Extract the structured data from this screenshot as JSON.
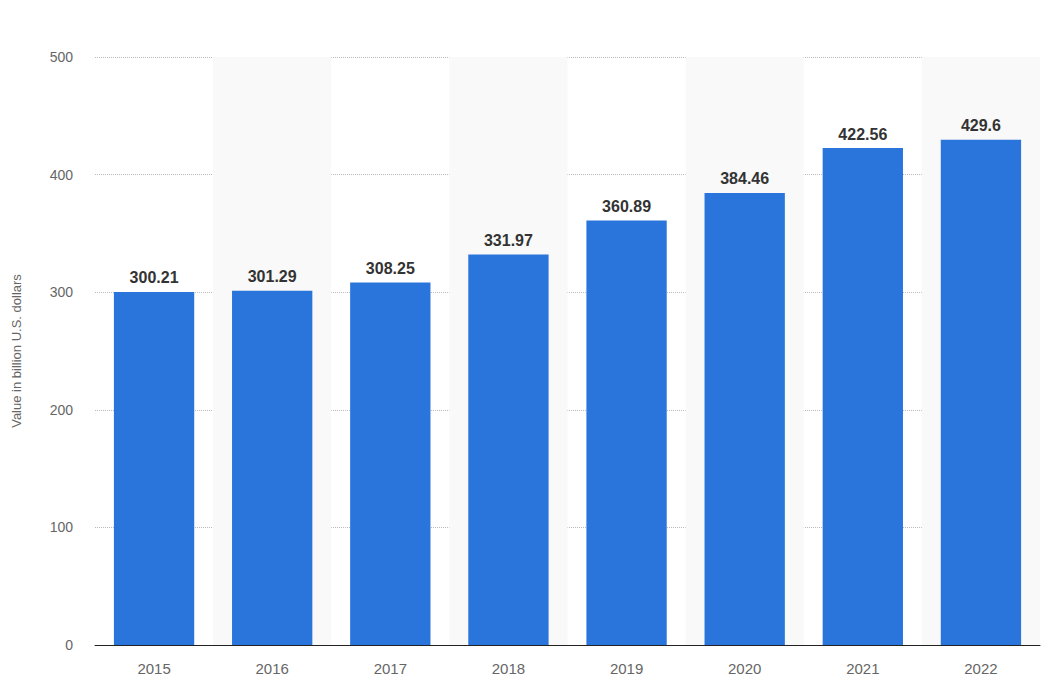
{
  "chart_data": {
    "type": "bar",
    "y_label": "Value in billion U.S. dollars",
    "categories": [
      "2015",
      "2016",
      "2017",
      "2018",
      "2019",
      "2020",
      "2021",
      "2022"
    ],
    "values": [
      300.21,
      301.29,
      308.25,
      331.97,
      360.89,
      384.46,
      422.56,
      429.6
    ],
    "color": "#2a75dc",
    "ylim": [
      0,
      500
    ],
    "yticks": [
      0,
      100,
      200,
      300,
      400,
      500
    ],
    "grid": true,
    "data_labels": true
  }
}
